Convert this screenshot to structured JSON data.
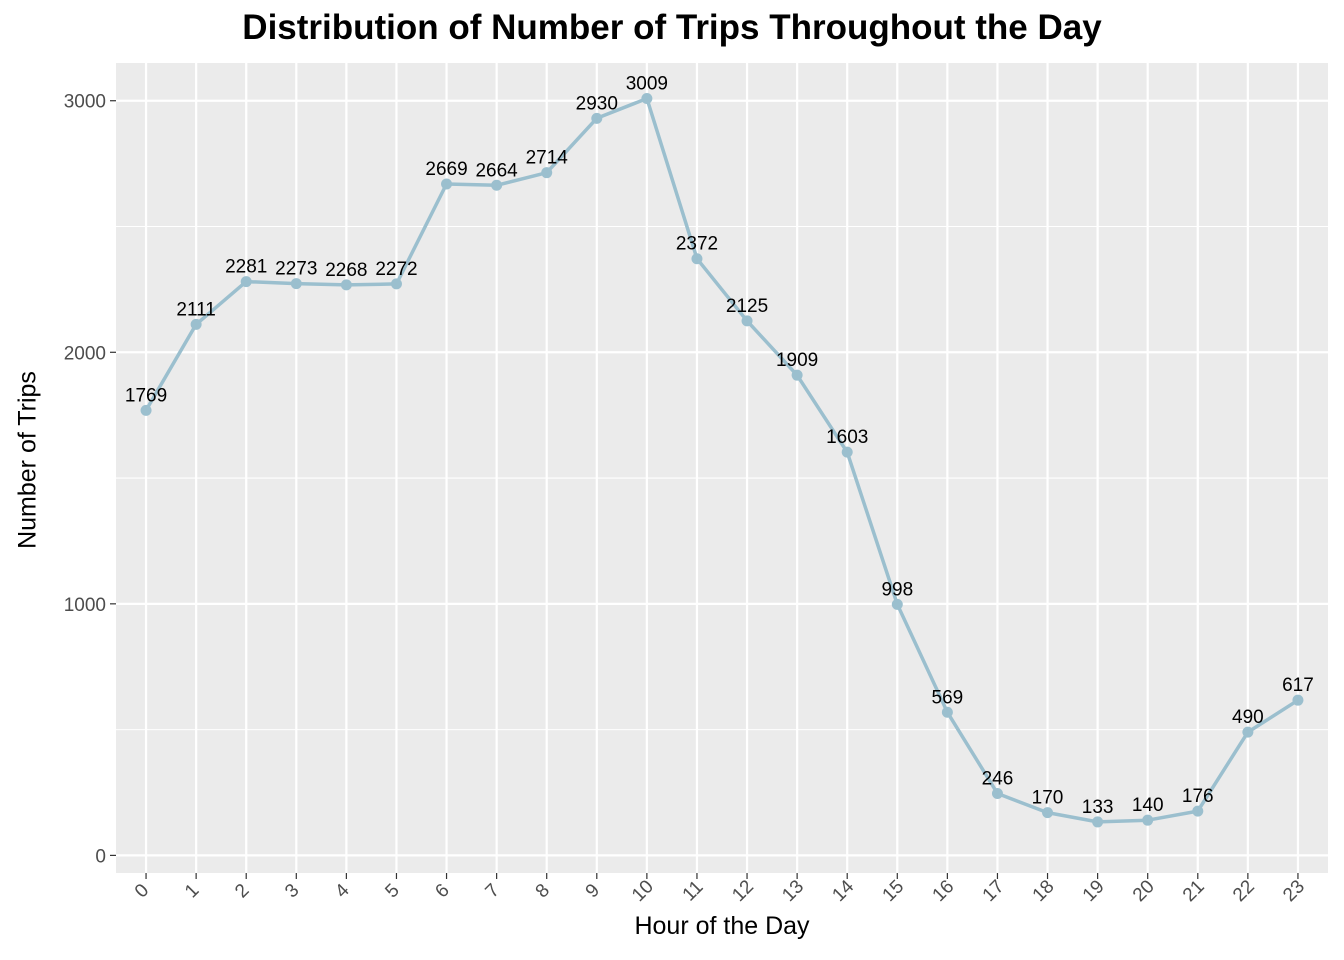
{
  "chart_data": {
    "type": "line",
    "title": "Distribution of Number of Trips Throughout the Day",
    "xlabel": "Hour of the Day",
    "ylabel": "Number of Trips",
    "x": [
      "0",
      "1",
      "2",
      "3",
      "4",
      "5",
      "6",
      "7",
      "8",
      "9",
      "10",
      "11",
      "12",
      "13",
      "14",
      "15",
      "16",
      "17",
      "18",
      "19",
      "20",
      "21",
      "22",
      "23"
    ],
    "values": [
      1769,
      2111,
      2281,
      2273,
      2268,
      2272,
      2669,
      2664,
      2714,
      2930,
      3009,
      2372,
      2125,
      1909,
      1603,
      998,
      569,
      246,
      170,
      133,
      140,
      176,
      490,
      617
    ],
    "y_ticks": [
      "0",
      "1000",
      "2000",
      "3000"
    ],
    "ylim": [
      -70,
      3150
    ],
    "grid": true,
    "line_color": "#9bbfce",
    "panel_color": "#ebebeb"
  }
}
